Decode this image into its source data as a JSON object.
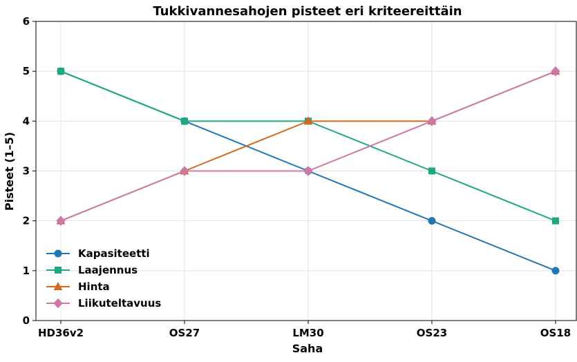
{
  "chart_data": {
    "type": "line",
    "title": "Tukkivannesahojen pisteet eri kriteereittäin",
    "xlabel": "Saha",
    "ylabel": "Pisteet (1–5)",
    "categories": [
      "HD36v2",
      "OS27",
      "LM30",
      "OS23",
      "OS18"
    ],
    "ylim": [
      0,
      6
    ],
    "yticks": [
      "0",
      "1",
      "2",
      "3",
      "4",
      "5",
      "6"
    ],
    "grid": true,
    "legend_position": "lower-left",
    "series": [
      {
        "name": "Kapasiteetti",
        "values": [
          5,
          4,
          3,
          2,
          1
        ],
        "color": "#1f77b4",
        "marker": "circle"
      },
      {
        "name": "Laajennus",
        "values": [
          5,
          4,
          4,
          3,
          2
        ],
        "color": "#1ea882",
        "marker": "square"
      },
      {
        "name": "Hinta",
        "values": [
          2,
          3,
          4,
          4,
          5
        ],
        "color": "#d2691e",
        "marker": "triangle"
      },
      {
        "name": "Liikuteltavuus",
        "values": [
          2,
          3,
          3,
          4,
          5
        ],
        "color": "#cc79a7",
        "marker": "diamond"
      }
    ]
  }
}
